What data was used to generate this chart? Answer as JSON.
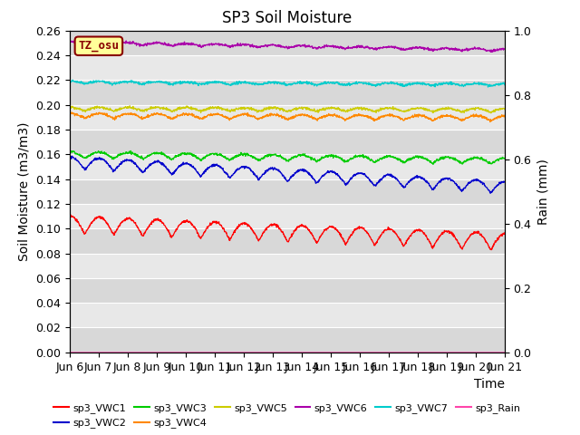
{
  "title": "SP3 Soil Moisture",
  "xlabel": "Time",
  "ylabel_left": "Soil Moisture (m3/m3)",
  "ylabel_right": "Rain (mm)",
  "ylim_left": [
    0.0,
    0.26
  ],
  "ylim_right": [
    0.0,
    1.0
  ],
  "yticks_left": [
    0.0,
    0.02,
    0.04,
    0.06,
    0.08,
    0.1,
    0.12,
    0.14,
    0.16,
    0.18,
    0.2,
    0.22,
    0.24,
    0.26
  ],
  "yticks_right": [
    0.0,
    0.2,
    0.4,
    0.6,
    0.8,
    1.0
  ],
  "xtick_labels": [
    "Jun 6",
    "Jun 7",
    "Jun 8",
    "Jun 9",
    "Jun 10",
    "Jun 11",
    "Jun 12",
    "Jun 13",
    "Jun 14",
    "Jun 15",
    "Jun 16",
    "Jun 17",
    "Jun 18",
    "Jun 19",
    "Jun 20",
    "Jun 21"
  ],
  "xtick_positions": [
    0,
    1,
    2,
    3,
    4,
    5,
    6,
    7,
    8,
    9,
    10,
    11,
    12,
    13,
    14,
    15
  ],
  "num_points": 1440,
  "series": [
    {
      "name": "sp3_VWC1",
      "color": "#ff0000",
      "base": 0.096,
      "amplitude": 0.014,
      "trend": -0.014,
      "freq": 1.0,
      "phase": 1.5
    },
    {
      "name": "sp3_VWC2",
      "color": "#0000cc",
      "base": 0.148,
      "amplitude": 0.01,
      "trend": -0.02,
      "freq": 1.0,
      "phase": 1.5
    },
    {
      "name": "sp3_VWC3",
      "color": "#00cc00",
      "base": 0.157,
      "amplitude": 0.005,
      "trend": -0.005,
      "freq": 1.0,
      "phase": 1.5
    },
    {
      "name": "sp3_VWC4",
      "color": "#ff8800",
      "base": 0.189,
      "amplitude": 0.004,
      "trend": -0.002,
      "freq": 1.0,
      "phase": 1.5
    },
    {
      "name": "sp3_VWC5",
      "color": "#cccc00",
      "base": 0.195,
      "amplitude": 0.003,
      "trend": -0.001,
      "freq": 1.0,
      "phase": 1.5
    },
    {
      "name": "sp3_VWC6",
      "color": "#aa00aa",
      "base": 0.249,
      "amplitude": 0.002,
      "trend": -0.006,
      "freq": 1.0,
      "phase": 1.5
    },
    {
      "name": "sp3_VWC7",
      "color": "#00cccc",
      "base": 0.217,
      "amplitude": 0.002,
      "trend": -0.002,
      "freq": 1.0,
      "phase": 1.5
    },
    {
      "name": "sp3_Rain",
      "color": "#ff44aa",
      "base": 0.0,
      "amplitude": 0.0,
      "trend": 0.0,
      "freq": 0.0,
      "phase": 0.0
    }
  ],
  "bg_color_light": "#e8e8e8",
  "bg_color_dark": "#d8d8d8",
  "tz_label": "TZ_osu",
  "tz_bg_color": "#ffff99",
  "tz_border_color": "#880000",
  "tz_text_color": "#880000",
  "title_fontsize": 12,
  "axis_label_fontsize": 10,
  "tick_fontsize": 9,
  "legend_fontsize": 8
}
